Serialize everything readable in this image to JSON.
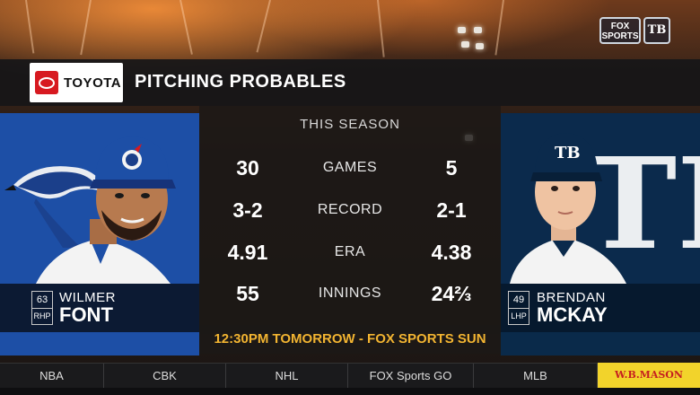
{
  "network_bug": {
    "network": "FOX SPORTS",
    "team": "TB"
  },
  "sponsor": {
    "name": "TOYOTA",
    "mark": "toyota-logo"
  },
  "title": "PITCHING PROBABLES",
  "stats": {
    "period": "THIS SEASON",
    "rows": [
      {
        "label": "GAMES",
        "left": "30",
        "right": "5"
      },
      {
        "label": "RECORD",
        "left": "3-2",
        "right": "2-1"
      },
      {
        "label": "ERA",
        "left": "4.91",
        "right": "4.38"
      },
      {
        "label": "INNINGS",
        "left": "55",
        "right": "24⅔"
      }
    ]
  },
  "away_pitcher": {
    "number": "63",
    "position": "RHP",
    "first_name": "WILMER",
    "last_name": "FONT",
    "team_color": "#1d4fa6"
  },
  "home_pitcher": {
    "number": "49",
    "position": "LHP",
    "first_name": "BRENDAN",
    "last_name": "MCKAY",
    "team_logo_text": "TB",
    "team_color": "#0a2a4a"
  },
  "broadcast": "12:30PM TOMORROW - FOX SPORTS SUN",
  "ticker": {
    "items": [
      "NBA",
      "CBK",
      "NHL",
      "FOX Sports GO",
      "MLB"
    ],
    "ad": "W.B.MASON"
  },
  "colors": {
    "accent_gold": "#f2b431",
    "sponsor_red": "#d71920"
  }
}
